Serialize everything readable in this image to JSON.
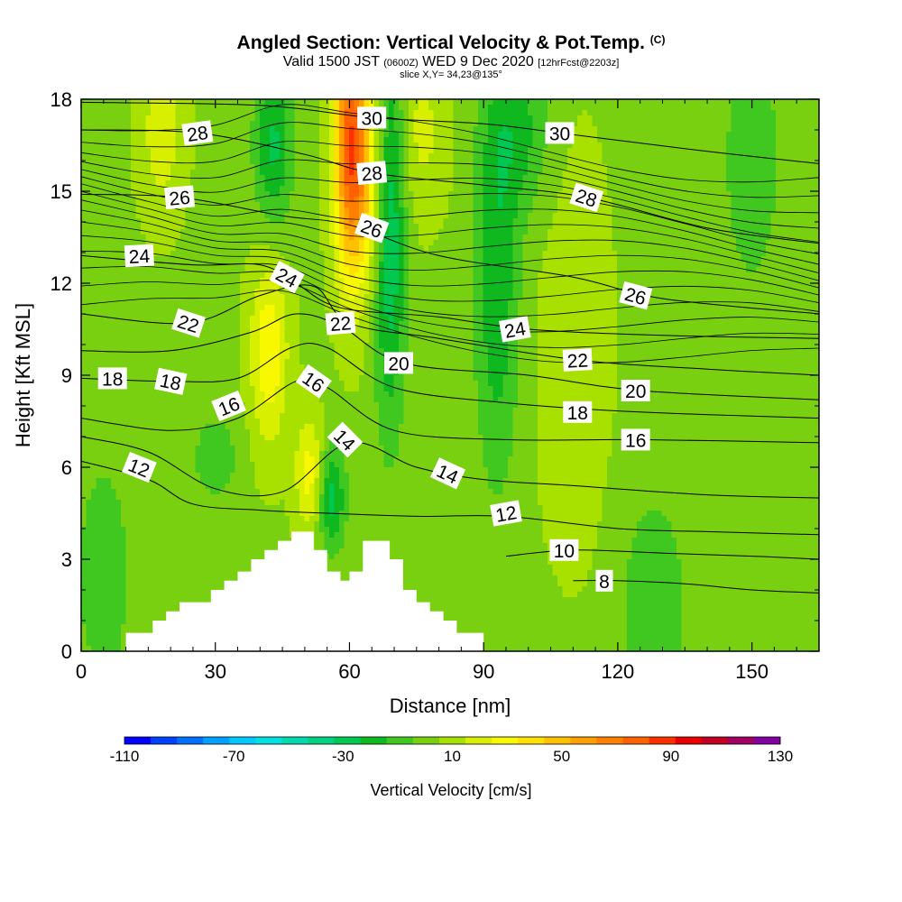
{
  "title": {
    "main": "Angled Section: Vertical Velocity & Pot.Temp.",
    "main_suffix": "(C)",
    "valid_prefix": "Valid 1500 JST",
    "valid_small": "(0600Z)",
    "valid_date": "WED 9 Dec 2020",
    "valid_fcst": "[12hrFcst@2203z]",
    "slice": "slice X,Y= 34,23@135°"
  },
  "chart_data": {
    "type": "heatmap",
    "description_free": true,
    "xlabel": "Distance [nm]",
    "ylabel": "Height [Kft MSL]",
    "xlim": [
      0,
      165
    ],
    "ylim": [
      0,
      18
    ],
    "xticks": [
      0,
      30,
      60,
      90,
      120,
      150
    ],
    "yticks": [
      0,
      3,
      6,
      9,
      12,
      15,
      18
    ],
    "colorbar": {
      "label": "Vertical Velocity [cm/s]",
      "range": [
        -110,
        130
      ],
      "step": 10,
      "tick_values": [
        -110,
        -70,
        -30,
        10,
        50,
        90,
        130
      ],
      "tick_labels": [
        "-110",
        "-70",
        "-30",
        "10",
        "50",
        "90",
        "130"
      ],
      "colors": [
        "#0000ff",
        "#0040ff",
        "#0070ff",
        "#00a0ff",
        "#00c8ff",
        "#00e0e0",
        "#00d8b0",
        "#00d080",
        "#00c850",
        "#10b820",
        "#40c820",
        "#78d010",
        "#a8e000",
        "#d8f000",
        "#f8f800",
        "#ffe000",
        "#ffc000",
        "#ffa000",
        "#ff8000",
        "#ff6000",
        "#ff3000",
        "#e80000",
        "#c00020",
        "#a00060",
        "#8000a0"
      ]
    },
    "terrain_profile": [
      [
        0,
        0
      ],
      [
        10,
        0
      ],
      [
        10,
        0.6
      ],
      [
        16,
        0.6
      ],
      [
        16,
        1.0
      ],
      [
        19,
        1.0
      ],
      [
        19,
        1.3
      ],
      [
        22,
        1.3
      ],
      [
        22,
        1.6
      ],
      [
        29,
        1.6
      ],
      [
        29,
        2.0
      ],
      [
        32,
        2.0
      ],
      [
        32,
        2.3
      ],
      [
        35,
        2.3
      ],
      [
        35,
        2.6
      ],
      [
        38,
        2.6
      ],
      [
        38,
        3.0
      ],
      [
        41,
        3.0
      ],
      [
        41,
        3.3
      ],
      [
        44,
        3.3
      ],
      [
        44,
        3.6
      ],
      [
        47,
        3.6
      ],
      [
        47,
        3.9
      ],
      [
        52,
        3.9
      ],
      [
        52,
        3.3
      ],
      [
        55,
        3.3
      ],
      [
        55,
        2.6
      ],
      [
        58,
        2.6
      ],
      [
        58,
        2.3
      ],
      [
        60,
        2.3
      ],
      [
        60,
        2.6
      ],
      [
        63,
        2.6
      ],
      [
        63,
        3.6
      ],
      [
        69,
        3.6
      ],
      [
        69,
        3.0
      ],
      [
        72,
        3.0
      ],
      [
        72,
        2.0
      ],
      [
        75,
        2.0
      ],
      [
        75,
        1.6
      ],
      [
        78,
        1.6
      ],
      [
        78,
        1.3
      ],
      [
        81,
        1.3
      ],
      [
        81,
        1.0
      ],
      [
        84,
        1.0
      ],
      [
        84,
        0.6
      ],
      [
        90,
        0.6
      ],
      [
        90,
        0
      ]
    ],
    "contour_labels": [
      {
        "text": "30",
        "x": 65,
        "y": 17.4,
        "angle": 0
      },
      {
        "text": "30",
        "x": 107,
        "y": 16.9,
        "angle": 0
      },
      {
        "text": "28",
        "x": 26,
        "y": 16.9,
        "angle": -8
      },
      {
        "text": "28",
        "x": 65,
        "y": 15.6,
        "angle": -5
      },
      {
        "text": "28",
        "x": 113,
        "y": 14.8,
        "angle": 18
      },
      {
        "text": "26",
        "x": 22,
        "y": 14.8,
        "angle": -5
      },
      {
        "text": "26",
        "x": 65,
        "y": 13.8,
        "angle": 20
      },
      {
        "text": "26",
        "x": 124,
        "y": 11.6,
        "angle": 15
      },
      {
        "text": "24",
        "x": 13,
        "y": 12.9,
        "angle": -3
      },
      {
        "text": "24",
        "x": 46,
        "y": 12.2,
        "angle": 28
      },
      {
        "text": "24",
        "x": 97,
        "y": 10.5,
        "angle": -10
      },
      {
        "text": "22",
        "x": 24,
        "y": 10.7,
        "angle": 18
      },
      {
        "text": "22",
        "x": 58,
        "y": 10.7,
        "angle": -5
      },
      {
        "text": "22",
        "x": 111,
        "y": 9.5,
        "angle": -3
      },
      {
        "text": "20",
        "x": 71,
        "y": 9.4,
        "angle": 0
      },
      {
        "text": "20",
        "x": 124,
        "y": 8.5,
        "angle": 0
      },
      {
        "text": "18",
        "x": 7,
        "y": 8.9,
        "angle": 0
      },
      {
        "text": "18",
        "x": 20,
        "y": 8.8,
        "angle": 12
      },
      {
        "text": "18",
        "x": 111,
        "y": 7.8,
        "angle": 0
      },
      {
        "text": "16",
        "x": 33,
        "y": 8.0,
        "angle": -22
      },
      {
        "text": "16",
        "x": 52,
        "y": 8.8,
        "angle": 35
      },
      {
        "text": "16",
        "x": 124,
        "y": 6.9,
        "angle": 0
      },
      {
        "text": "14",
        "x": 59,
        "y": 6.9,
        "angle": 45
      },
      {
        "text": "14",
        "x": 82,
        "y": 5.8,
        "angle": 25
      },
      {
        "text": "12",
        "x": 13,
        "y": 6.0,
        "angle": 22
      },
      {
        "text": "12",
        "x": 95,
        "y": 4.5,
        "angle": -10
      },
      {
        "text": "10",
        "x": 108,
        "y": 3.3,
        "angle": 0
      },
      {
        "text": "8",
        "x": 117,
        "y": 2.3,
        "angle": 0
      }
    ],
    "isentropes": [
      {
        "value": 8,
        "points": [
          [
            110,
            2.3
          ],
          [
            120,
            2.3
          ],
          [
            135,
            2.2
          ],
          [
            150,
            2.0
          ],
          [
            165,
            1.9
          ]
        ]
      },
      {
        "value": 10,
        "points": [
          [
            95,
            3.1
          ],
          [
            110,
            3.3
          ],
          [
            130,
            3.2
          ],
          [
            150,
            3.1
          ],
          [
            165,
            3.0
          ]
        ]
      },
      {
        "value": 12,
        "points": [
          [
            0,
            6.2
          ],
          [
            15,
            5.6
          ],
          [
            25,
            4.8
          ],
          [
            40,
            4.6
          ],
          [
            55,
            4.5
          ],
          [
            75,
            4.4
          ],
          [
            95,
            4.4
          ],
          [
            120,
            4.0
          ],
          [
            140,
            3.9
          ],
          [
            165,
            3.8
          ]
        ]
      },
      {
        "value": 14,
        "points": [
          [
            0,
            7.0
          ],
          [
            15,
            6.5
          ],
          [
            30,
            5.3
          ],
          [
            45,
            5.2
          ],
          [
            60,
            6.8
          ],
          [
            75,
            6.0
          ],
          [
            90,
            5.6
          ],
          [
            110,
            5.4
          ],
          [
            140,
            5.1
          ],
          [
            165,
            5.0
          ]
        ]
      },
      {
        "value": 16,
        "points": [
          [
            0,
            7.6
          ],
          [
            20,
            7.2
          ],
          [
            35,
            7.6
          ],
          [
            48,
            8.8
          ],
          [
            55,
            8.6
          ],
          [
            70,
            7.2
          ],
          [
            95,
            6.9
          ],
          [
            125,
            6.9
          ],
          [
            165,
            6.8
          ]
        ]
      },
      {
        "value": 18,
        "points": [
          [
            0,
            8.9
          ],
          [
            20,
            8.8
          ],
          [
            35,
            8.9
          ],
          [
            47,
            9.9
          ],
          [
            55,
            9.9
          ],
          [
            70,
            8.6
          ],
          [
            95,
            8.1
          ],
          [
            125,
            7.8
          ],
          [
            165,
            7.6
          ]
        ]
      },
      {
        "value": 20,
        "points": [
          [
            0,
            9.8
          ],
          [
            20,
            9.8
          ],
          [
            38,
            10.4
          ],
          [
            48,
            11.0
          ],
          [
            58,
            10.6
          ],
          [
            72,
            9.4
          ],
          [
            100,
            9.0
          ],
          [
            125,
            8.5
          ],
          [
            165,
            8.2
          ]
        ]
      },
      {
        "value": 22,
        "points": [
          [
            0,
            11.0
          ],
          [
            24,
            10.7
          ],
          [
            40,
            11.6
          ],
          [
            52,
            11.9
          ],
          [
            60,
            10.7
          ],
          [
            80,
            10.2
          ],
          [
            111,
            9.5
          ],
          [
            140,
            9.2
          ],
          [
            165,
            9.0
          ]
        ]
      },
      {
        "value": 24,
        "points": [
          [
            0,
            12.9
          ],
          [
            25,
            12.6
          ],
          [
            40,
            12.6
          ],
          [
            48,
            12.0
          ],
          [
            58,
            11.2
          ],
          [
            80,
            10.9
          ],
          [
            100,
            10.5
          ],
          [
            130,
            10.3
          ],
          [
            165,
            10.2
          ]
        ]
      },
      {
        "value": 26,
        "points": [
          [
            0,
            14.9
          ],
          [
            22,
            14.8
          ],
          [
            45,
            14.2
          ],
          [
            60,
            13.9
          ],
          [
            80,
            12.9
          ],
          [
            110,
            12.2
          ],
          [
            130,
            11.5
          ],
          [
            165,
            11.0
          ]
        ]
      },
      {
        "value": 28,
        "points": [
          [
            0,
            17.0
          ],
          [
            26,
            16.9
          ],
          [
            50,
            16.2
          ],
          [
            65,
            15.6
          ],
          [
            90,
            15.2
          ],
          [
            113,
            14.8
          ],
          [
            140,
            13.8
          ],
          [
            165,
            13.3
          ]
        ]
      },
      {
        "value": 30,
        "points": [
          [
            0,
            17.9
          ],
          [
            40,
            17.8
          ],
          [
            65,
            17.4
          ],
          [
            90,
            17.2
          ],
          [
            107,
            16.9
          ],
          [
            140,
            16.3
          ],
          [
            165,
            15.9
          ]
        ]
      }
    ]
  }
}
